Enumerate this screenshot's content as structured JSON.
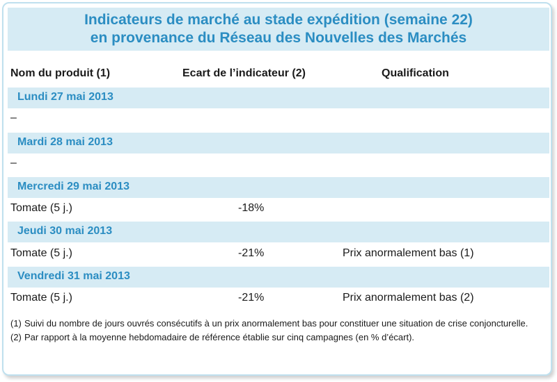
{
  "title": {
    "line1": "Indicateurs de marché au stade expédition (semaine 22)",
    "line2": "en provenance du Réseau des Nouvelles des Marchés"
  },
  "columns": {
    "product": "Nom du produit (1)",
    "indicator": "Ecart de l’indicateur (2)",
    "qualification": "Qualification"
  },
  "days": [
    {
      "label": "Lundi 27 mai 2013",
      "rows": [
        {
          "product": "–",
          "indicator": "",
          "qualification": ""
        }
      ]
    },
    {
      "label": "Mardi 28 mai 2013",
      "rows": [
        {
          "product": "–",
          "indicator": "",
          "qualification": ""
        }
      ]
    },
    {
      "label": "Mercredi 29 mai 2013",
      "rows": [
        {
          "product": "Tomate (5 j.)",
          "indicator": "-18%",
          "qualification": ""
        }
      ]
    },
    {
      "label": "Jeudi 30 mai 2013",
      "rows": [
        {
          "product": "Tomate (5 j.)",
          "indicator": "-21%",
          "qualification": "Prix anormalement bas (1)"
        }
      ]
    },
    {
      "label": "Vendredi 31 mai 2013",
      "rows": [
        {
          "product": "Tomate (5 j.)",
          "indicator": "-21%",
          "qualification": "Prix anormalement bas (2)"
        }
      ]
    }
  ],
  "notes": [
    {
      "num": "(1)",
      "text": "Suivi du nombre de jours ouvrés consécutifs à un prix anormalement bas pour constituer une situation de crise conjoncturelle."
    },
    {
      "num": "(2)",
      "text": "Par rapport à la moyenne hebdomadaire de référence établie sur cinq campagnes (en % d’écart)."
    }
  ],
  "colors": {
    "accent": "#2b8dc2",
    "band": "#d6ebf4",
    "border": "#bfe0ee"
  }
}
